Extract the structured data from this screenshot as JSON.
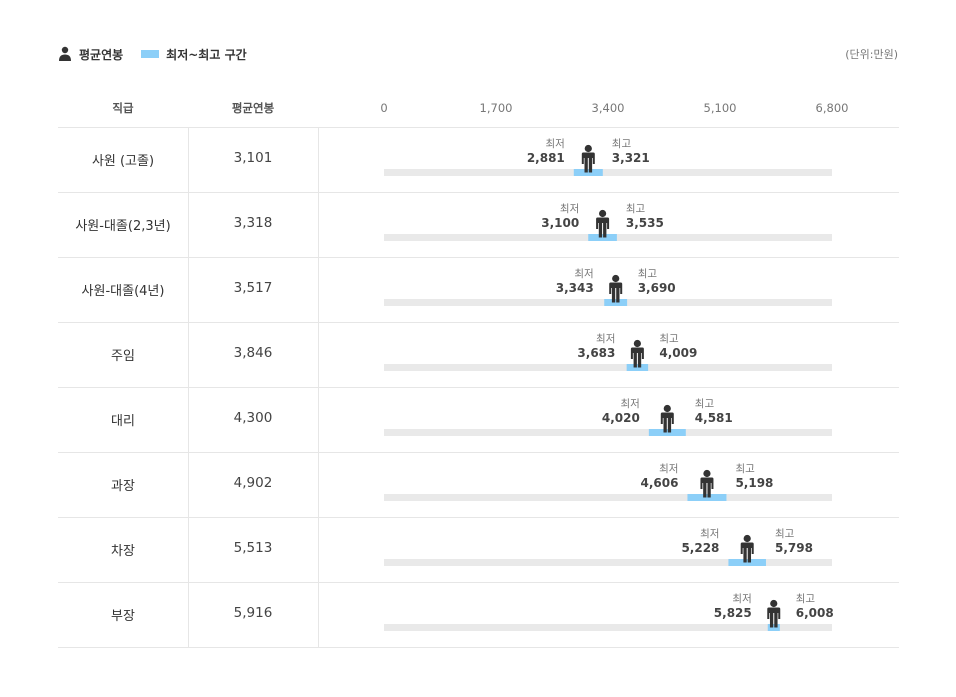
{
  "legend": {
    "avg_label": "평균연봉",
    "range_label": "최저~최고 구간",
    "unit": "(단위:만원)"
  },
  "table": {
    "rank_header": "직급",
    "avg_header": "평균연봉"
  },
  "colors": {
    "range": "#8ccff8",
    "track": "#e9e9e9",
    "person": "#333333",
    "min_max_label": "#777777",
    "value_text": "#444444"
  },
  "chart_data": {
    "type": "range-dot",
    "x_ticks": [
      "0",
      "1,700",
      "3,400",
      "5,100",
      "6,800"
    ],
    "xlim": [
      0,
      6800
    ],
    "min_label": "최저",
    "max_label": "최고",
    "rows": [
      {
        "rank": "사원 (고졸)",
        "avg": 3101,
        "avg_text": "3,101",
        "min": 2881,
        "min_text": "2,881",
        "max": 3321,
        "max_text": "3,321"
      },
      {
        "rank": "사원-대졸(2,3년)",
        "avg": 3318,
        "avg_text": "3,318",
        "min": 3100,
        "min_text": "3,100",
        "max": 3535,
        "max_text": "3,535"
      },
      {
        "rank": "사원-대졸(4년)",
        "avg": 3517,
        "avg_text": "3,517",
        "min": 3343,
        "min_text": "3,343",
        "max": 3690,
        "max_text": "3,690"
      },
      {
        "rank": "주임",
        "avg": 3846,
        "avg_text": "3,846",
        "min": 3683,
        "min_text": "3,683",
        "max": 4009,
        "max_text": "4,009"
      },
      {
        "rank": "대리",
        "avg": 4300,
        "avg_text": "4,300",
        "min": 4020,
        "min_text": "4,020",
        "max": 4581,
        "max_text": "4,581"
      },
      {
        "rank": "과장",
        "avg": 4902,
        "avg_text": "4,902",
        "min": 4606,
        "min_text": "4,606",
        "max": 5198,
        "max_text": "5,198"
      },
      {
        "rank": "차장",
        "avg": 5513,
        "avg_text": "5,513",
        "min": 5228,
        "min_text": "5,228",
        "max": 5798,
        "max_text": "5,798"
      },
      {
        "rank": "부장",
        "avg": 5916,
        "avg_text": "5,916",
        "min": 5825,
        "min_text": "5,825",
        "max": 6008,
        "max_text": "6,008"
      }
    ]
  }
}
